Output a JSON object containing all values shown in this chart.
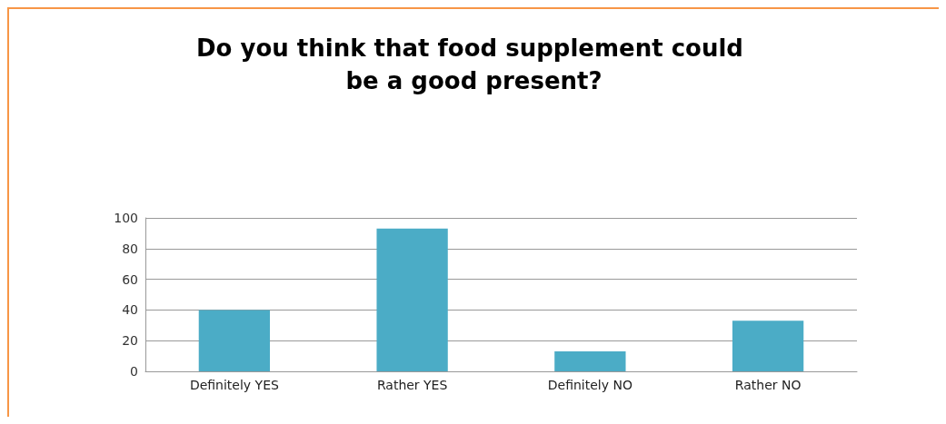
{
  "chart_data": {
    "type": "bar",
    "title": "Do you think that food supplement could be a good present?",
    "categories": [
      "Definitely YES",
      "Rather YES",
      "Definitely NO",
      "Rather NO"
    ],
    "values": [
      40,
      93,
      13,
      33
    ],
    "color": "#4bacc6",
    "ylim": [
      0,
      100
    ],
    "yticks": [
      0,
      20,
      40,
      60,
      80,
      100
    ],
    "grid": "y"
  }
}
